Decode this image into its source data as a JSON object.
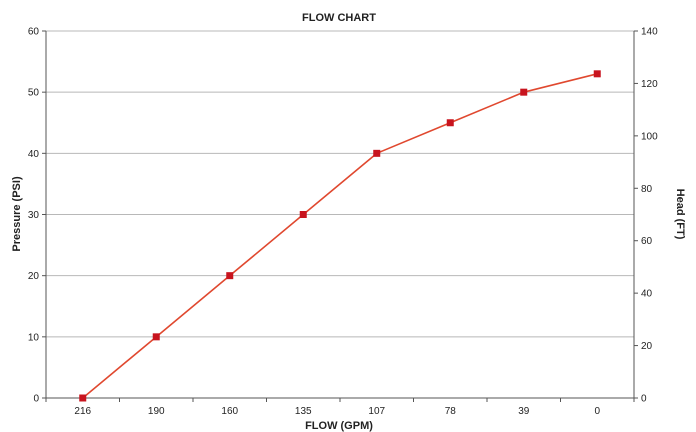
{
  "chart_data": {
    "type": "line",
    "title": "FLOW CHART",
    "xlabel": "FLOW (GPM)",
    "ylabel": "Pressure (PSI)",
    "y2label": "Head (FT)",
    "categories": [
      "216",
      "190",
      "160",
      "135",
      "107",
      "78",
      "39",
      "0"
    ],
    "series": [
      {
        "values": [
          0,
          10,
          20,
          30,
          40,
          45,
          50,
          53
        ]
      }
    ],
    "ylim": [
      0,
      60
    ],
    "y2lim": [
      0,
      140
    ],
    "yticks": [
      "0",
      "10",
      "20",
      "30",
      "40",
      "50",
      "60"
    ],
    "y2ticks": [
      "0",
      "20",
      "40",
      "60",
      "80",
      "100",
      "120",
      "140"
    ],
    "grid": "horizontal",
    "legend": "none",
    "colors": {
      "line": "#e0482f",
      "marker": "#c8141e",
      "grid": "#b8b8b8",
      "axis": "#555555"
    }
  }
}
